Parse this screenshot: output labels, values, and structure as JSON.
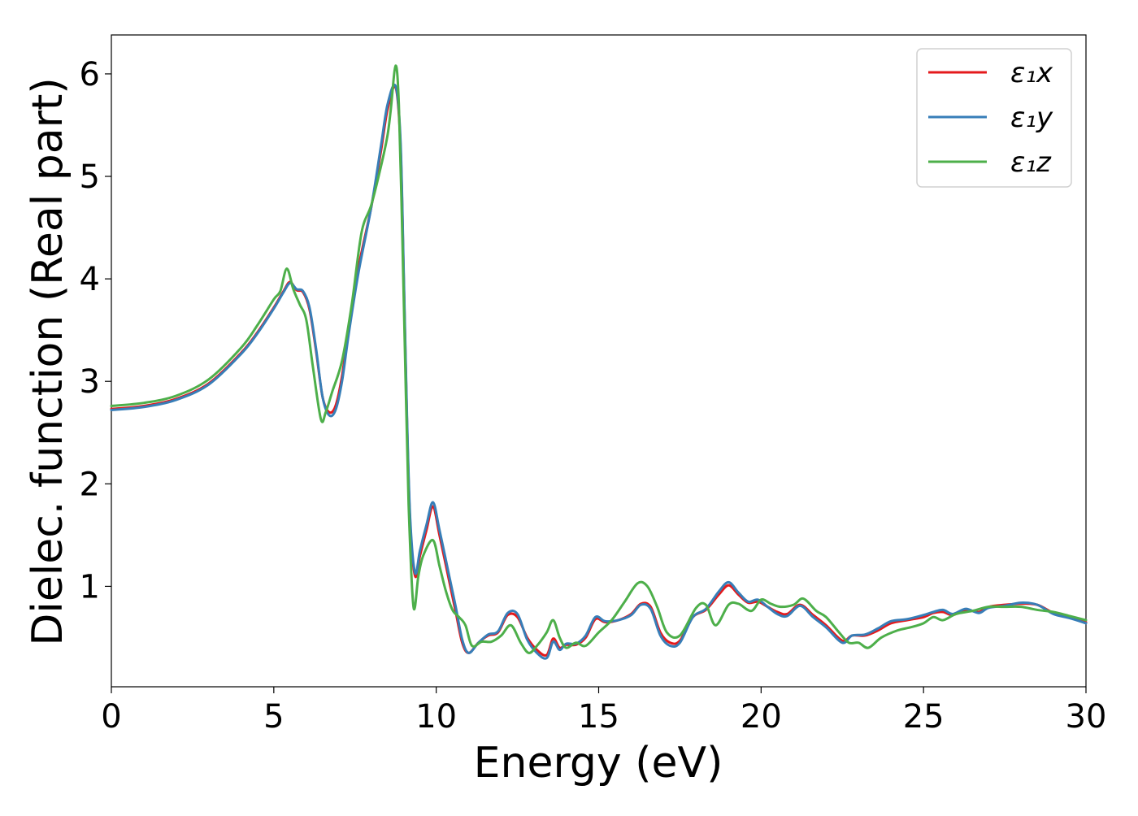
{
  "chart_data": {
    "type": "line",
    "title": "",
    "xlabel": "Energy (eV)",
    "ylabel": "Dielec. function (Real part)",
    "xlim": [
      0,
      30
    ],
    "ylim": [
      0.02,
      6.38
    ],
    "xticks": [
      0,
      5,
      10,
      15,
      20,
      25,
      30
    ],
    "yticks": [
      1,
      2,
      3,
      4,
      5,
      6
    ],
    "grid": false,
    "legend_position": "top-right",
    "series": [
      {
        "name": "ε₁x",
        "color": "#e41a1c",
        "points": [
          [
            0,
            2.73
          ],
          [
            1,
            2.76
          ],
          [
            2,
            2.83
          ],
          [
            3,
            2.98
          ],
          [
            4,
            3.28
          ],
          [
            4.5,
            3.48
          ],
          [
            5,
            3.72
          ],
          [
            5.3,
            3.88
          ],
          [
            5.5,
            3.97
          ],
          [
            5.7,
            3.89
          ],
          [
            5.9,
            3.87
          ],
          [
            6.1,
            3.7
          ],
          [
            6.3,
            3.3
          ],
          [
            6.5,
            2.85
          ],
          [
            6.7,
            2.7
          ],
          [
            6.9,
            2.76
          ],
          [
            7.1,
            3.05
          ],
          [
            7.3,
            3.5
          ],
          [
            7.6,
            4.1
          ],
          [
            8.0,
            4.7
          ],
          [
            8.3,
            5.25
          ],
          [
            8.5,
            5.65
          ],
          [
            8.75,
            5.87
          ],
          [
            8.9,
            5.3
          ],
          [
            9.0,
            4.0
          ],
          [
            9.1,
            2.6
          ],
          [
            9.2,
            1.6
          ],
          [
            9.35,
            1.1
          ],
          [
            9.5,
            1.3
          ],
          [
            9.7,
            1.55
          ],
          [
            9.9,
            1.78
          ],
          [
            10.1,
            1.5
          ],
          [
            10.4,
            1.05
          ],
          [
            10.6,
            0.75
          ],
          [
            10.8,
            0.45
          ],
          [
            11.0,
            0.35
          ],
          [
            11.3,
            0.45
          ],
          [
            11.6,
            0.52
          ],
          [
            11.9,
            0.55
          ],
          [
            12.2,
            0.72
          ],
          [
            12.5,
            0.7
          ],
          [
            12.8,
            0.5
          ],
          [
            13.1,
            0.38
          ],
          [
            13.4,
            0.33
          ],
          [
            13.6,
            0.49
          ],
          [
            13.8,
            0.4
          ],
          [
            14.0,
            0.43
          ],
          [
            14.3,
            0.43
          ],
          [
            14.6,
            0.5
          ],
          [
            14.9,
            0.68
          ],
          [
            15.2,
            0.65
          ],
          [
            15.6,
            0.67
          ],
          [
            16.0,
            0.73
          ],
          [
            16.3,
            0.83
          ],
          [
            16.6,
            0.8
          ],
          [
            16.9,
            0.55
          ],
          [
            17.2,
            0.45
          ],
          [
            17.5,
            0.47
          ],
          [
            17.9,
            0.7
          ],
          [
            18.3,
            0.77
          ],
          [
            18.7,
            0.92
          ],
          [
            19.0,
            1.01
          ],
          [
            19.3,
            0.92
          ],
          [
            19.6,
            0.84
          ],
          [
            19.9,
            0.85
          ],
          [
            20.2,
            0.8
          ],
          [
            20.5,
            0.75
          ],
          [
            20.8,
            0.73
          ],
          [
            21.2,
            0.82
          ],
          [
            21.6,
            0.72
          ],
          [
            22.0,
            0.62
          ],
          [
            22.5,
            0.47
          ],
          [
            22.8,
            0.52
          ],
          [
            23.2,
            0.52
          ],
          [
            23.6,
            0.57
          ],
          [
            24.0,
            0.64
          ],
          [
            24.5,
            0.67
          ],
          [
            25.0,
            0.7
          ],
          [
            25.3,
            0.74
          ],
          [
            25.6,
            0.75
          ],
          [
            25.9,
            0.72
          ],
          [
            26.3,
            0.77
          ],
          [
            26.7,
            0.75
          ],
          [
            27.0,
            0.8
          ],
          [
            27.5,
            0.82
          ],
          [
            28.0,
            0.83
          ],
          [
            28.5,
            0.82
          ],
          [
            29.0,
            0.74
          ],
          [
            29.5,
            0.7
          ],
          [
            30.0,
            0.65
          ]
        ]
      },
      {
        "name": "ε₁y",
        "color": "#377eb8",
        "points": [
          [
            0,
            2.72
          ],
          [
            1,
            2.75
          ],
          [
            2,
            2.82
          ],
          [
            3,
            2.97
          ],
          [
            4,
            3.27
          ],
          [
            4.5,
            3.47
          ],
          [
            5,
            3.71
          ],
          [
            5.3,
            3.87
          ],
          [
            5.5,
            3.96
          ],
          [
            5.7,
            3.9
          ],
          [
            5.9,
            3.88
          ],
          [
            6.1,
            3.72
          ],
          [
            6.3,
            3.32
          ],
          [
            6.5,
            2.85
          ],
          [
            6.7,
            2.67
          ],
          [
            6.9,
            2.72
          ],
          [
            7.1,
            3.0
          ],
          [
            7.3,
            3.45
          ],
          [
            7.6,
            4.05
          ],
          [
            8.0,
            4.7
          ],
          [
            8.3,
            5.3
          ],
          [
            8.5,
            5.7
          ],
          [
            8.75,
            5.88
          ],
          [
            8.9,
            5.35
          ],
          [
            9.0,
            4.05
          ],
          [
            9.1,
            2.65
          ],
          [
            9.2,
            1.65
          ],
          [
            9.35,
            1.13
          ],
          [
            9.5,
            1.35
          ],
          [
            9.7,
            1.6
          ],
          [
            9.9,
            1.82
          ],
          [
            10.1,
            1.55
          ],
          [
            10.4,
            1.1
          ],
          [
            10.6,
            0.8
          ],
          [
            10.8,
            0.48
          ],
          [
            11.0,
            0.35
          ],
          [
            11.3,
            0.45
          ],
          [
            11.6,
            0.53
          ],
          [
            11.9,
            0.56
          ],
          [
            12.2,
            0.74
          ],
          [
            12.5,
            0.73
          ],
          [
            12.8,
            0.48
          ],
          [
            13.1,
            0.35
          ],
          [
            13.4,
            0.3
          ],
          [
            13.6,
            0.46
          ],
          [
            13.8,
            0.38
          ],
          [
            14.0,
            0.44
          ],
          [
            14.3,
            0.44
          ],
          [
            14.6,
            0.52
          ],
          [
            14.9,
            0.7
          ],
          [
            15.2,
            0.66
          ],
          [
            15.6,
            0.67
          ],
          [
            16.0,
            0.72
          ],
          [
            16.3,
            0.82
          ],
          [
            16.6,
            0.78
          ],
          [
            16.9,
            0.52
          ],
          [
            17.2,
            0.42
          ],
          [
            17.5,
            0.45
          ],
          [
            17.9,
            0.7
          ],
          [
            18.3,
            0.78
          ],
          [
            18.7,
            0.95
          ],
          [
            19.0,
            1.04
          ],
          [
            19.3,
            0.94
          ],
          [
            19.6,
            0.85
          ],
          [
            19.9,
            0.87
          ],
          [
            20.2,
            0.8
          ],
          [
            20.5,
            0.73
          ],
          [
            20.8,
            0.71
          ],
          [
            21.2,
            0.81
          ],
          [
            21.6,
            0.7
          ],
          [
            22.0,
            0.6
          ],
          [
            22.5,
            0.45
          ],
          [
            22.8,
            0.52
          ],
          [
            23.2,
            0.53
          ],
          [
            23.6,
            0.59
          ],
          [
            24.0,
            0.66
          ],
          [
            24.5,
            0.68
          ],
          [
            25.0,
            0.72
          ],
          [
            25.3,
            0.75
          ],
          [
            25.6,
            0.77
          ],
          [
            25.9,
            0.73
          ],
          [
            26.3,
            0.78
          ],
          [
            26.7,
            0.74
          ],
          [
            27.0,
            0.79
          ],
          [
            27.5,
            0.81
          ],
          [
            28.0,
            0.84
          ],
          [
            28.5,
            0.82
          ],
          [
            29.0,
            0.73
          ],
          [
            29.5,
            0.69
          ],
          [
            30.0,
            0.64
          ]
        ]
      },
      {
        "name": "ε₁z",
        "color": "#4daf4a",
        "points": [
          [
            0,
            2.76
          ],
          [
            1,
            2.79
          ],
          [
            2,
            2.86
          ],
          [
            3,
            3.02
          ],
          [
            4,
            3.33
          ],
          [
            4.5,
            3.55
          ],
          [
            5,
            3.8
          ],
          [
            5.2,
            3.88
          ],
          [
            5.4,
            4.1
          ],
          [
            5.6,
            3.9
          ],
          [
            5.8,
            3.75
          ],
          [
            6.0,
            3.6
          ],
          [
            6.2,
            3.15
          ],
          [
            6.45,
            2.63
          ],
          [
            6.6,
            2.7
          ],
          [
            6.8,
            2.9
          ],
          [
            7.1,
            3.2
          ],
          [
            7.4,
            3.75
          ],
          [
            7.7,
            4.45
          ],
          [
            8.0,
            4.72
          ],
          [
            8.3,
            5.1
          ],
          [
            8.5,
            5.4
          ],
          [
            8.6,
            5.65
          ],
          [
            8.75,
            6.08
          ],
          [
            8.85,
            5.7
          ],
          [
            8.95,
            4.5
          ],
          [
            9.05,
            3.1
          ],
          [
            9.15,
            1.8
          ],
          [
            9.3,
            0.8
          ],
          [
            9.45,
            1.1
          ],
          [
            9.6,
            1.3
          ],
          [
            9.9,
            1.45
          ],
          [
            10.1,
            1.2
          ],
          [
            10.3,
            0.95
          ],
          [
            10.5,
            0.77
          ],
          [
            10.7,
            0.7
          ],
          [
            10.9,
            0.62
          ],
          [
            11.1,
            0.42
          ],
          [
            11.4,
            0.46
          ],
          [
            11.7,
            0.46
          ],
          [
            12.0,
            0.52
          ],
          [
            12.3,
            0.62
          ],
          [
            12.6,
            0.45
          ],
          [
            12.85,
            0.35
          ],
          [
            13.1,
            0.42
          ],
          [
            13.4,
            0.55
          ],
          [
            13.6,
            0.67
          ],
          [
            13.8,
            0.5
          ],
          [
            14.0,
            0.4
          ],
          [
            14.3,
            0.45
          ],
          [
            14.6,
            0.42
          ],
          [
            15.0,
            0.55
          ],
          [
            15.4,
            0.67
          ],
          [
            15.8,
            0.85
          ],
          [
            16.2,
            1.03
          ],
          [
            16.5,
            1.0
          ],
          [
            16.8,
            0.8
          ],
          [
            17.1,
            0.55
          ],
          [
            17.5,
            0.52
          ],
          [
            18.0,
            0.79
          ],
          [
            18.3,
            0.82
          ],
          [
            18.6,
            0.62
          ],
          [
            19.0,
            0.82
          ],
          [
            19.3,
            0.83
          ],
          [
            19.7,
            0.76
          ],
          [
            20.0,
            0.87
          ],
          [
            20.3,
            0.83
          ],
          [
            20.6,
            0.8
          ],
          [
            21.0,
            0.82
          ],
          [
            21.3,
            0.88
          ],
          [
            21.7,
            0.76
          ],
          [
            22.0,
            0.7
          ],
          [
            22.4,
            0.55
          ],
          [
            22.7,
            0.45
          ],
          [
            23.0,
            0.45
          ],
          [
            23.3,
            0.4
          ],
          [
            23.7,
            0.5
          ],
          [
            24.2,
            0.57
          ],
          [
            24.6,
            0.6
          ],
          [
            25.0,
            0.64
          ],
          [
            25.3,
            0.7
          ],
          [
            25.6,
            0.67
          ],
          [
            26.0,
            0.73
          ],
          [
            26.5,
            0.76
          ],
          [
            27.0,
            0.8
          ],
          [
            27.5,
            0.8
          ],
          [
            28.0,
            0.8
          ],
          [
            28.5,
            0.77
          ],
          [
            29.0,
            0.75
          ],
          [
            29.5,
            0.71
          ],
          [
            30.0,
            0.67
          ]
        ]
      }
    ]
  }
}
